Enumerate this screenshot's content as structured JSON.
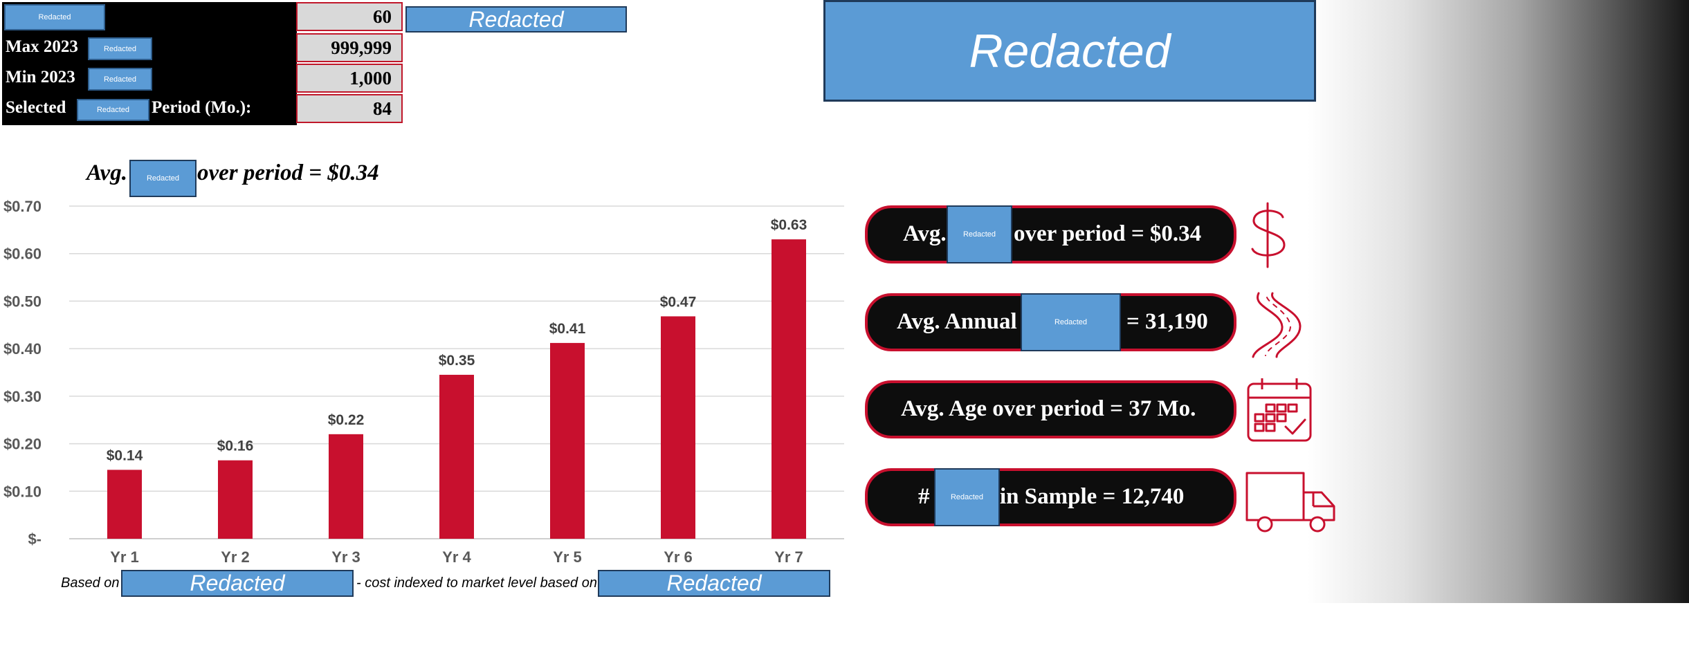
{
  "redacted_text": "Redacted",
  "settings": {
    "row1_value": "60",
    "max_label": "Max 2023",
    "max_value": "999,999",
    "min_label": "Min 2023",
    "min_value": "1,000",
    "selected_label": "Selected",
    "period_label": "Period (Mo.):",
    "period_value": "84"
  },
  "chart_title_prefix": "Avg.",
  "chart_title_suffix": "over period = $0.34",
  "chart_data": {
    "type": "bar",
    "categories": [
      "Yr 1",
      "Yr 2",
      "Yr 3",
      "Yr 4",
      "Yr 5",
      "Yr 6",
      "Yr 7"
    ],
    "values": [
      0.145,
      0.165,
      0.22,
      0.345,
      0.412,
      0.468,
      0.63
    ],
    "data_labels": [
      "$0.14",
      "$0.16",
      "$0.22",
      "$0.35",
      "$0.41",
      "$0.47",
      "$0.63"
    ],
    "y_ticks": [
      0,
      0.1,
      0.2,
      0.3,
      0.4,
      0.5,
      0.6,
      0.7
    ],
    "y_tick_labels": [
      "$-",
      "$0.10",
      "$0.20",
      "$0.30",
      "$0.40",
      "$0.50",
      "$0.60",
      "$0.70"
    ],
    "ylim": [
      0,
      0.7
    ],
    "grid": true,
    "bar_color": "#c8102e"
  },
  "stats": {
    "avg_prefix": "Avg.",
    "avg_suffix": "over period = $0.34",
    "annual_prefix": "Avg. Annual",
    "annual_suffix": "= 31,190",
    "age_text": "Avg. Age over period = 37 Mo.",
    "sample_prefix": "#",
    "sample_suffix": "in Sample = 12,740"
  },
  "footnote": {
    "based_on": "Based on",
    "indexed": "- cost indexed to market level based on"
  },
  "icons": [
    "dollar-icon",
    "road-icon",
    "calendar-icon",
    "truck-icon"
  ],
  "colors": {
    "accent": "#c8102e",
    "redact": "#5b9bd5",
    "pill_bg": "#0d0d0d"
  }
}
